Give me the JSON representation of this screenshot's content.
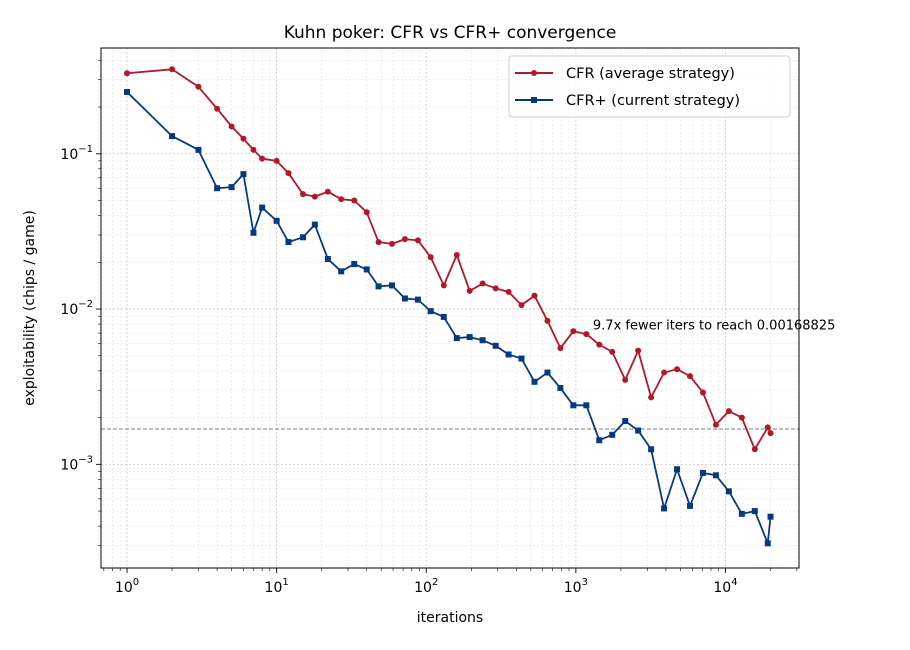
{
  "chart_data": {
    "type": "line",
    "title": "Kuhn poker: CFR vs CFR+ convergence",
    "xlabel": "iterations",
    "ylabel": "exploitability (chips / game)",
    "xscale": "log",
    "yscale": "log",
    "xlim": [
      0.67,
      31000
    ],
    "ylim": [
      0.000215,
      0.48
    ],
    "grid": true,
    "legend_position": "top-right",
    "x_ticks": [
      {
        "value": 1,
        "base": "10",
        "exp": "0"
      },
      {
        "value": 10,
        "base": "10",
        "exp": "1"
      },
      {
        "value": 100,
        "base": "10",
        "exp": "2"
      },
      {
        "value": 1000,
        "base": "10",
        "exp": "3"
      },
      {
        "value": 10000,
        "base": "10",
        "exp": "4"
      }
    ],
    "y_ticks": [
      {
        "value": 0.001,
        "base": "10",
        "exp": "−3"
      },
      {
        "value": 0.01,
        "base": "10",
        "exp": "−2"
      },
      {
        "value": 0.1,
        "base": "10",
        "exp": "−1"
      }
    ],
    "reference_line": {
      "y": 0.00168825,
      "style": "dashed",
      "color": "#808080"
    },
    "annotation": {
      "text": "9.7x fewer iters to reach 0.00168825",
      "x": 1300,
      "y": 0.0074
    },
    "series": [
      {
        "name": "CFR (average strategy)",
        "color": "#b2182b",
        "marker": "circle",
        "points": [
          [
            1,
            0.33
          ],
          [
            2,
            0.35
          ],
          [
            3,
            0.27
          ],
          [
            4,
            0.195
          ],
          [
            5,
            0.15
          ],
          [
            6,
            0.125
          ],
          [
            7,
            0.106
          ],
          [
            8,
            0.093
          ],
          [
            10,
            0.09
          ],
          [
            12,
            0.075
          ],
          [
            15,
            0.055
          ],
          [
            18,
            0.053
          ],
          [
            22,
            0.057
          ],
          [
            27,
            0.051
          ],
          [
            33,
            0.05
          ],
          [
            40,
            0.042
          ],
          [
            48,
            0.027
          ],
          [
            59,
            0.0263
          ],
          [
            72,
            0.0282
          ],
          [
            88,
            0.0277
          ],
          [
            107,
            0.0216
          ],
          [
            131,
            0.0142
          ],
          [
            160,
            0.0223
          ],
          [
            195,
            0.0131
          ],
          [
            238,
            0.0146
          ],
          [
            291,
            0.0136
          ],
          [
            355,
            0.0129
          ],
          [
            433,
            0.0106
          ],
          [
            529,
            0.0122
          ],
          [
            646,
            0.0084
          ],
          [
            788,
            0.0056
          ],
          [
            962,
            0.0072
          ],
          [
            1175,
            0.0069
          ],
          [
            1434,
            0.0059
          ],
          [
            1750,
            0.0053
          ],
          [
            2137,
            0.0035
          ],
          [
            2608,
            0.0054
          ],
          [
            3184,
            0.0027
          ],
          [
            3887,
            0.0039
          ],
          [
            4745,
            0.0041
          ],
          [
            5792,
            0.0037
          ],
          [
            7070,
            0.0029
          ],
          [
            8631,
            0.0018
          ],
          [
            10536,
            0.0022
          ],
          [
            12862,
            0.002
          ],
          [
            15700,
            0.00125
          ],
          [
            19165,
            0.00173
          ],
          [
            20000,
            0.00159
          ]
        ]
      },
      {
        "name": "CFR+ (current strategy)",
        "color": "#08397f",
        "marker": "square",
        "points": [
          [
            1,
            0.25
          ],
          [
            2,
            0.13
          ],
          [
            3,
            0.106
          ],
          [
            4,
            0.06
          ],
          [
            5,
            0.061
          ],
          [
            6,
            0.074
          ],
          [
            7,
            0.031
          ],
          [
            8,
            0.045
          ],
          [
            10,
            0.037
          ],
          [
            12,
            0.027
          ],
          [
            15,
            0.029
          ],
          [
            18,
            0.035
          ],
          [
            22,
            0.021
          ],
          [
            27,
            0.0175
          ],
          [
            33,
            0.0195
          ],
          [
            40,
            0.018
          ],
          [
            48,
            0.014
          ],
          [
            59,
            0.0142
          ],
          [
            72,
            0.0117
          ],
          [
            88,
            0.0115
          ],
          [
            107,
            0.0097
          ],
          [
            131,
            0.0089
          ],
          [
            160,
            0.0065
          ],
          [
            195,
            0.0066
          ],
          [
            238,
            0.0063
          ],
          [
            291,
            0.0058
          ],
          [
            355,
            0.0051
          ],
          [
            433,
            0.0048
          ],
          [
            529,
            0.0034
          ],
          [
            646,
            0.0039
          ],
          [
            788,
            0.0031
          ],
          [
            962,
            0.0024
          ],
          [
            1175,
            0.0024
          ],
          [
            1434,
            0.00143
          ],
          [
            1750,
            0.00155
          ],
          [
            2137,
            0.0019
          ],
          [
            2608,
            0.00165
          ],
          [
            3184,
            0.00125
          ],
          [
            3887,
            0.00052
          ],
          [
            4745,
            0.00093
          ],
          [
            5792,
            0.00054
          ],
          [
            7070,
            0.00088
          ],
          [
            8631,
            0.00085
          ],
          [
            10536,
            0.00067
          ],
          [
            12862,
            0.00048
          ],
          [
            15700,
            0.0005
          ],
          [
            19165,
            0.00031
          ],
          [
            20000,
            0.00046
          ]
        ]
      }
    ]
  }
}
